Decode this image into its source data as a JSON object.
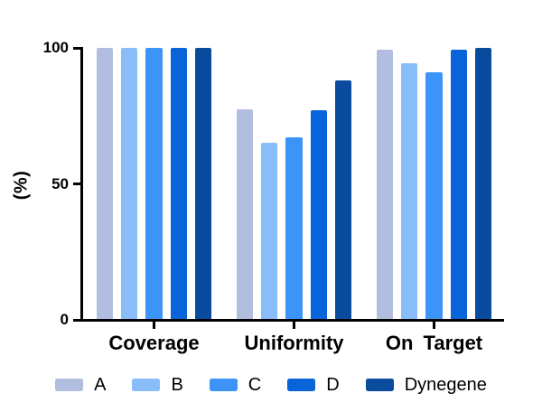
{
  "figure": {
    "background": "#ffffff",
    "text_color": "#000000"
  },
  "chart_data": {
    "type": "bar",
    "title": "",
    "xlabel": "",
    "ylabel": "(%)",
    "ylim": [
      0,
      100
    ],
    "yticks": [
      0,
      50,
      100
    ],
    "grid": false,
    "legend_position": "bottom",
    "axis_color": "#000000",
    "categories": [
      "Coverage",
      "Uniformity",
      "On Target"
    ],
    "series": [
      {
        "name": "A",
        "color": "#b1bedf",
        "values": [
          100,
          77.5,
          99.3
        ]
      },
      {
        "name": "B",
        "color": "#89bdf9",
        "values": [
          100,
          65.0,
          94.5
        ]
      },
      {
        "name": "C",
        "color": "#3d94f8",
        "values": [
          100,
          67.0,
          91.0
        ]
      },
      {
        "name": "D",
        "color": "#0a64d9",
        "values": [
          100,
          77.0,
          99.2
        ]
      },
      {
        "name": "Dynegene",
        "color": "#0a4b9e",
        "values": [
          100,
          88.0,
          99.9
        ]
      }
    ]
  }
}
